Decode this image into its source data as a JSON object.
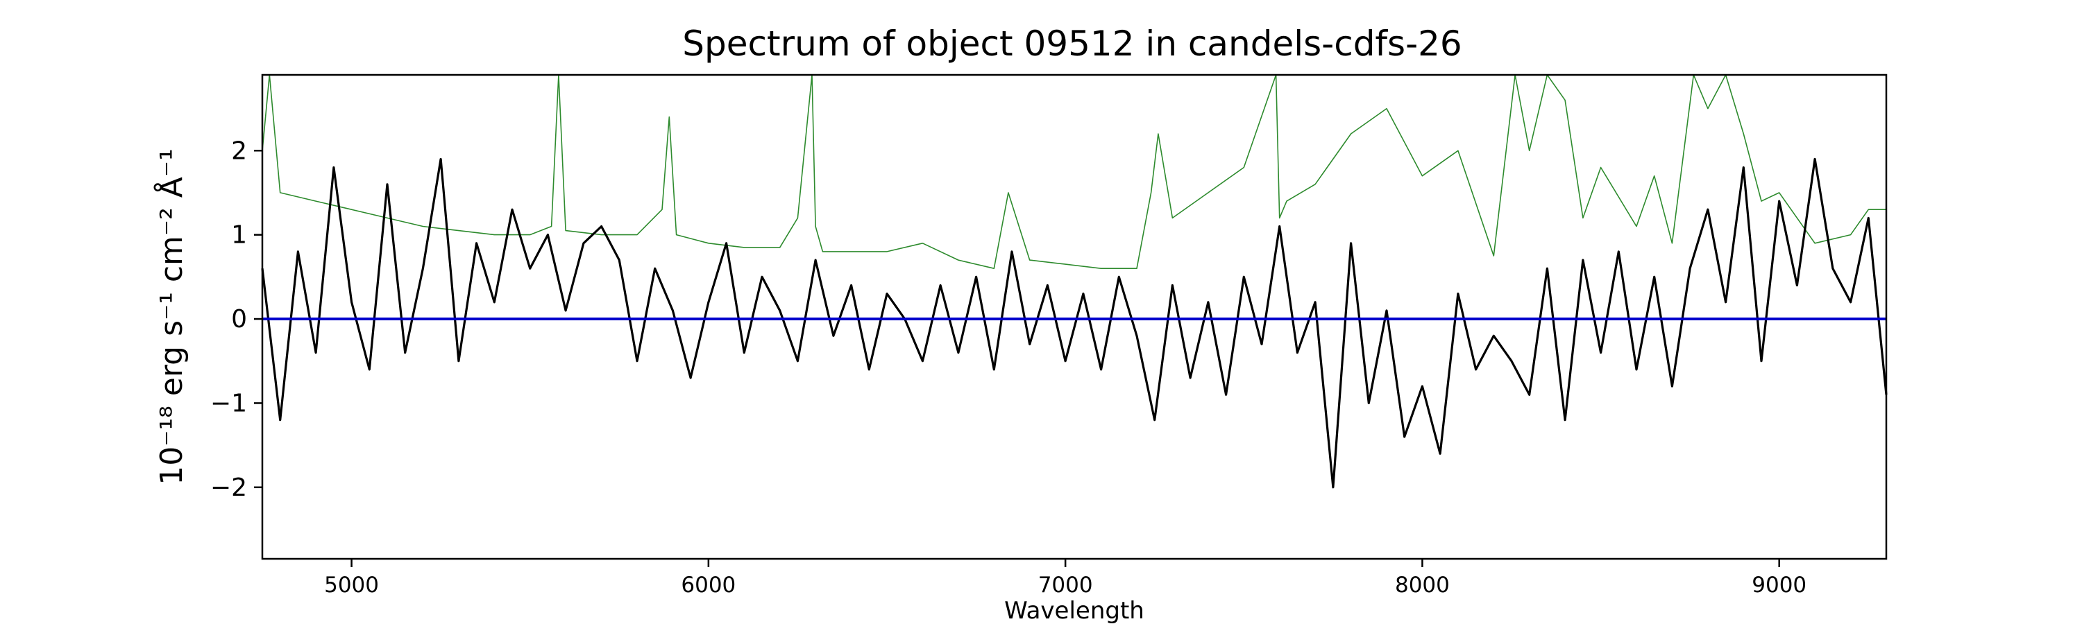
{
  "chart_data": {
    "type": "line",
    "title": "Spectrum of object 09512 in candels-cdfs-26",
    "xlabel": "Wavelength",
    "ylabel": "10⁻¹⁸ erg s⁻¹ cm⁻² Å⁻¹",
    "xlim": [
      4750,
      9300
    ],
    "ylim": [
      -2.85,
      2.9
    ],
    "xticks": [
      5000,
      6000,
      7000,
      8000,
      9000
    ],
    "yticks": [
      -2,
      -1,
      0,
      1,
      2
    ],
    "ytick_labels": [
      "−2",
      "−1",
      "0",
      "1",
      "2"
    ],
    "grid": false,
    "series": [
      {
        "style": "black-noisy-flux",
        "color": "#000000",
        "x": [
          4750,
          4800,
          4850,
          4900,
          4950,
          5000,
          5050,
          5100,
          5150,
          5200,
          5250,
          5300,
          5350,
          5400,
          5450,
          5500,
          5550,
          5600,
          5650,
          5700,
          5750,
          5800,
          5850,
          5900,
          5950,
          6000,
          6050,
          6100,
          6150,
          6200,
          6250,
          6300,
          6350,
          6400,
          6450,
          6500,
          6550,
          6600,
          6650,
          6700,
          6750,
          6800,
          6850,
          6900,
          6950,
          7000,
          7050,
          7100,
          7150,
          7200,
          7250,
          7300,
          7350,
          7400,
          7450,
          7500,
          7550,
          7600,
          7650,
          7700,
          7750,
          7800,
          7850,
          7900,
          7950,
          8000,
          8050,
          8100,
          8150,
          8200,
          8250,
          8300,
          8350,
          8400,
          8450,
          8500,
          8550,
          8600,
          8650,
          8700,
          8750,
          8800,
          8850,
          8900,
          8950,
          9000,
          9050,
          9100,
          9150,
          9200,
          9250,
          9300
        ],
        "y": [
          0.6,
          -1.2,
          0.8,
          -0.4,
          1.8,
          0.2,
          -0.6,
          1.6,
          -0.4,
          0.6,
          1.9,
          -0.5,
          0.9,
          0.2,
          1.3,
          0.6,
          1.0,
          0.1,
          0.9,
          1.1,
          0.7,
          -0.5,
          0.6,
          0.1,
          -0.7,
          0.2,
          0.9,
          -0.4,
          0.5,
          0.1,
          -0.5,
          0.7,
          -0.2,
          0.4,
          -0.6,
          0.3,
          0.0,
          -0.5,
          0.4,
          -0.4,
          0.5,
          -0.6,
          0.8,
          -0.3,
          0.4,
          -0.5,
          0.3,
          -0.6,
          0.5,
          -0.2,
          -1.2,
          0.4,
          -0.7,
          0.2,
          -0.9,
          0.5,
          -0.3,
          1.1,
          -0.4,
          0.2,
          -2.0,
          0.9,
          -1.0,
          0.1,
          -1.4,
          -0.8,
          -1.6,
          0.3,
          -0.6,
          -0.2,
          -0.5,
          -0.9,
          0.6,
          -1.2,
          0.7,
          -0.4,
          0.8,
          -0.6,
          0.5,
          -0.8,
          0.6,
          1.3,
          0.2,
          1.8,
          -0.5,
          1.4,
          0.4,
          1.9,
          0.6,
          0.2,
          1.2,
          -0.9
        ]
      },
      {
        "style": "green-thin-line",
        "color": "#2e8b2e",
        "x": [
          4750,
          4770,
          4800,
          4900,
          5000,
          5100,
          5200,
          5300,
          5400,
          5500,
          5560,
          5580,
          5600,
          5700,
          5800,
          5870,
          5890,
          5910,
          6000,
          6100,
          6200,
          6250,
          6290,
          6300,
          6320,
          6400,
          6500,
          6600,
          6700,
          6800,
          6840,
          6900,
          7000,
          7100,
          7200,
          7240,
          7260,
          7300,
          7400,
          7500,
          7590,
          7600,
          7620,
          7700,
          7800,
          7900,
          8000,
          8100,
          8200,
          8260,
          8300,
          8350,
          8400,
          8450,
          8500,
          8600,
          8650,
          8700,
          8760,
          8800,
          8850,
          8900,
          8950,
          9000,
          9100,
          9200,
          9250,
          9300
        ],
        "y": [
          2.0,
          2.9,
          1.5,
          1.4,
          1.3,
          1.2,
          1.1,
          1.05,
          1.0,
          1.0,
          1.1,
          2.9,
          1.05,
          1.0,
          1.0,
          1.3,
          2.4,
          1.0,
          0.9,
          0.85,
          0.85,
          1.2,
          2.9,
          1.1,
          0.8,
          0.8,
          0.8,
          0.9,
          0.7,
          0.6,
          1.5,
          0.7,
          0.65,
          0.6,
          0.6,
          1.5,
          2.2,
          1.2,
          1.5,
          1.8,
          2.9,
          1.2,
          1.4,
          1.6,
          2.2,
          2.5,
          1.7,
          2.0,
          0.75,
          2.9,
          2.0,
          2.9,
          2.6,
          1.2,
          1.8,
          1.1,
          1.7,
          0.9,
          2.9,
          2.5,
          2.9,
          2.2,
          1.4,
          1.5,
          0.9,
          1.0,
          1.3,
          1.3
        ]
      },
      {
        "style": "blue-zero-line",
        "color": "#0000cc",
        "x": [
          4750,
          9300
        ],
        "y": [
          0,
          0
        ]
      }
    ]
  }
}
